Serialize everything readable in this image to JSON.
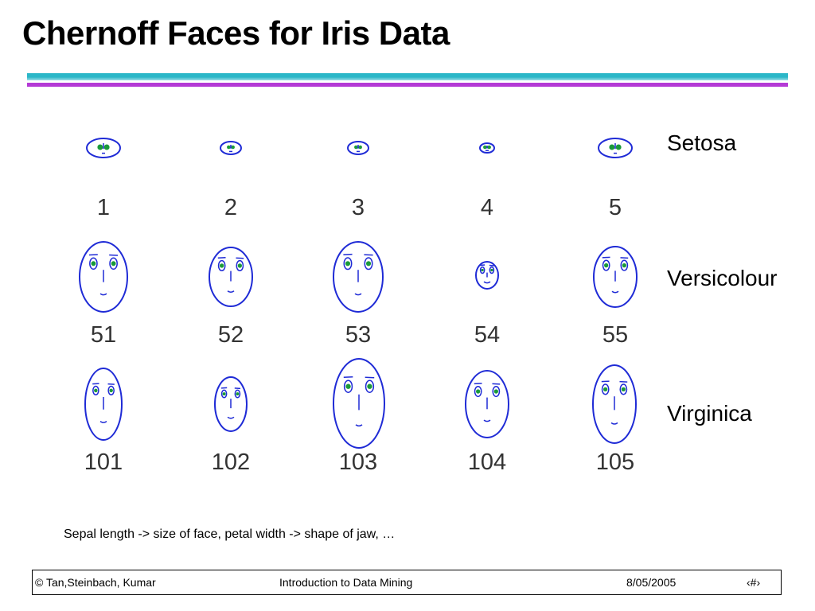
{
  "slide": {
    "title": "Chernoff Faces for Iris Data",
    "caption": "Sepal length -> size of face, petal width -> shape of jaw, …"
  },
  "species_labels": [
    "Setosa",
    "Versicolour",
    "Virginica"
  ],
  "faces": [
    {
      "id": "1"
    },
    {
      "id": "2"
    },
    {
      "id": "3"
    },
    {
      "id": "4"
    },
    {
      "id": "5"
    },
    {
      "id": "51"
    },
    {
      "id": "52"
    },
    {
      "id": "53"
    },
    {
      "id": "54"
    },
    {
      "id": "55"
    },
    {
      "id": "101"
    },
    {
      "id": "102"
    },
    {
      "id": "103"
    },
    {
      "id": "104"
    },
    {
      "id": "105"
    }
  ],
  "colors": {
    "face_outline": "#1f2bd6",
    "eye_iris": "#1a9a3a",
    "rule_cyan": "#2bb7c8",
    "rule_magenta": "#b43ad6"
  },
  "footer": {
    "left": "© Tan,Steinbach, Kumar",
    "center": "Introduction to Data Mining",
    "date": "8/05/2005",
    "page": "‹#›"
  }
}
